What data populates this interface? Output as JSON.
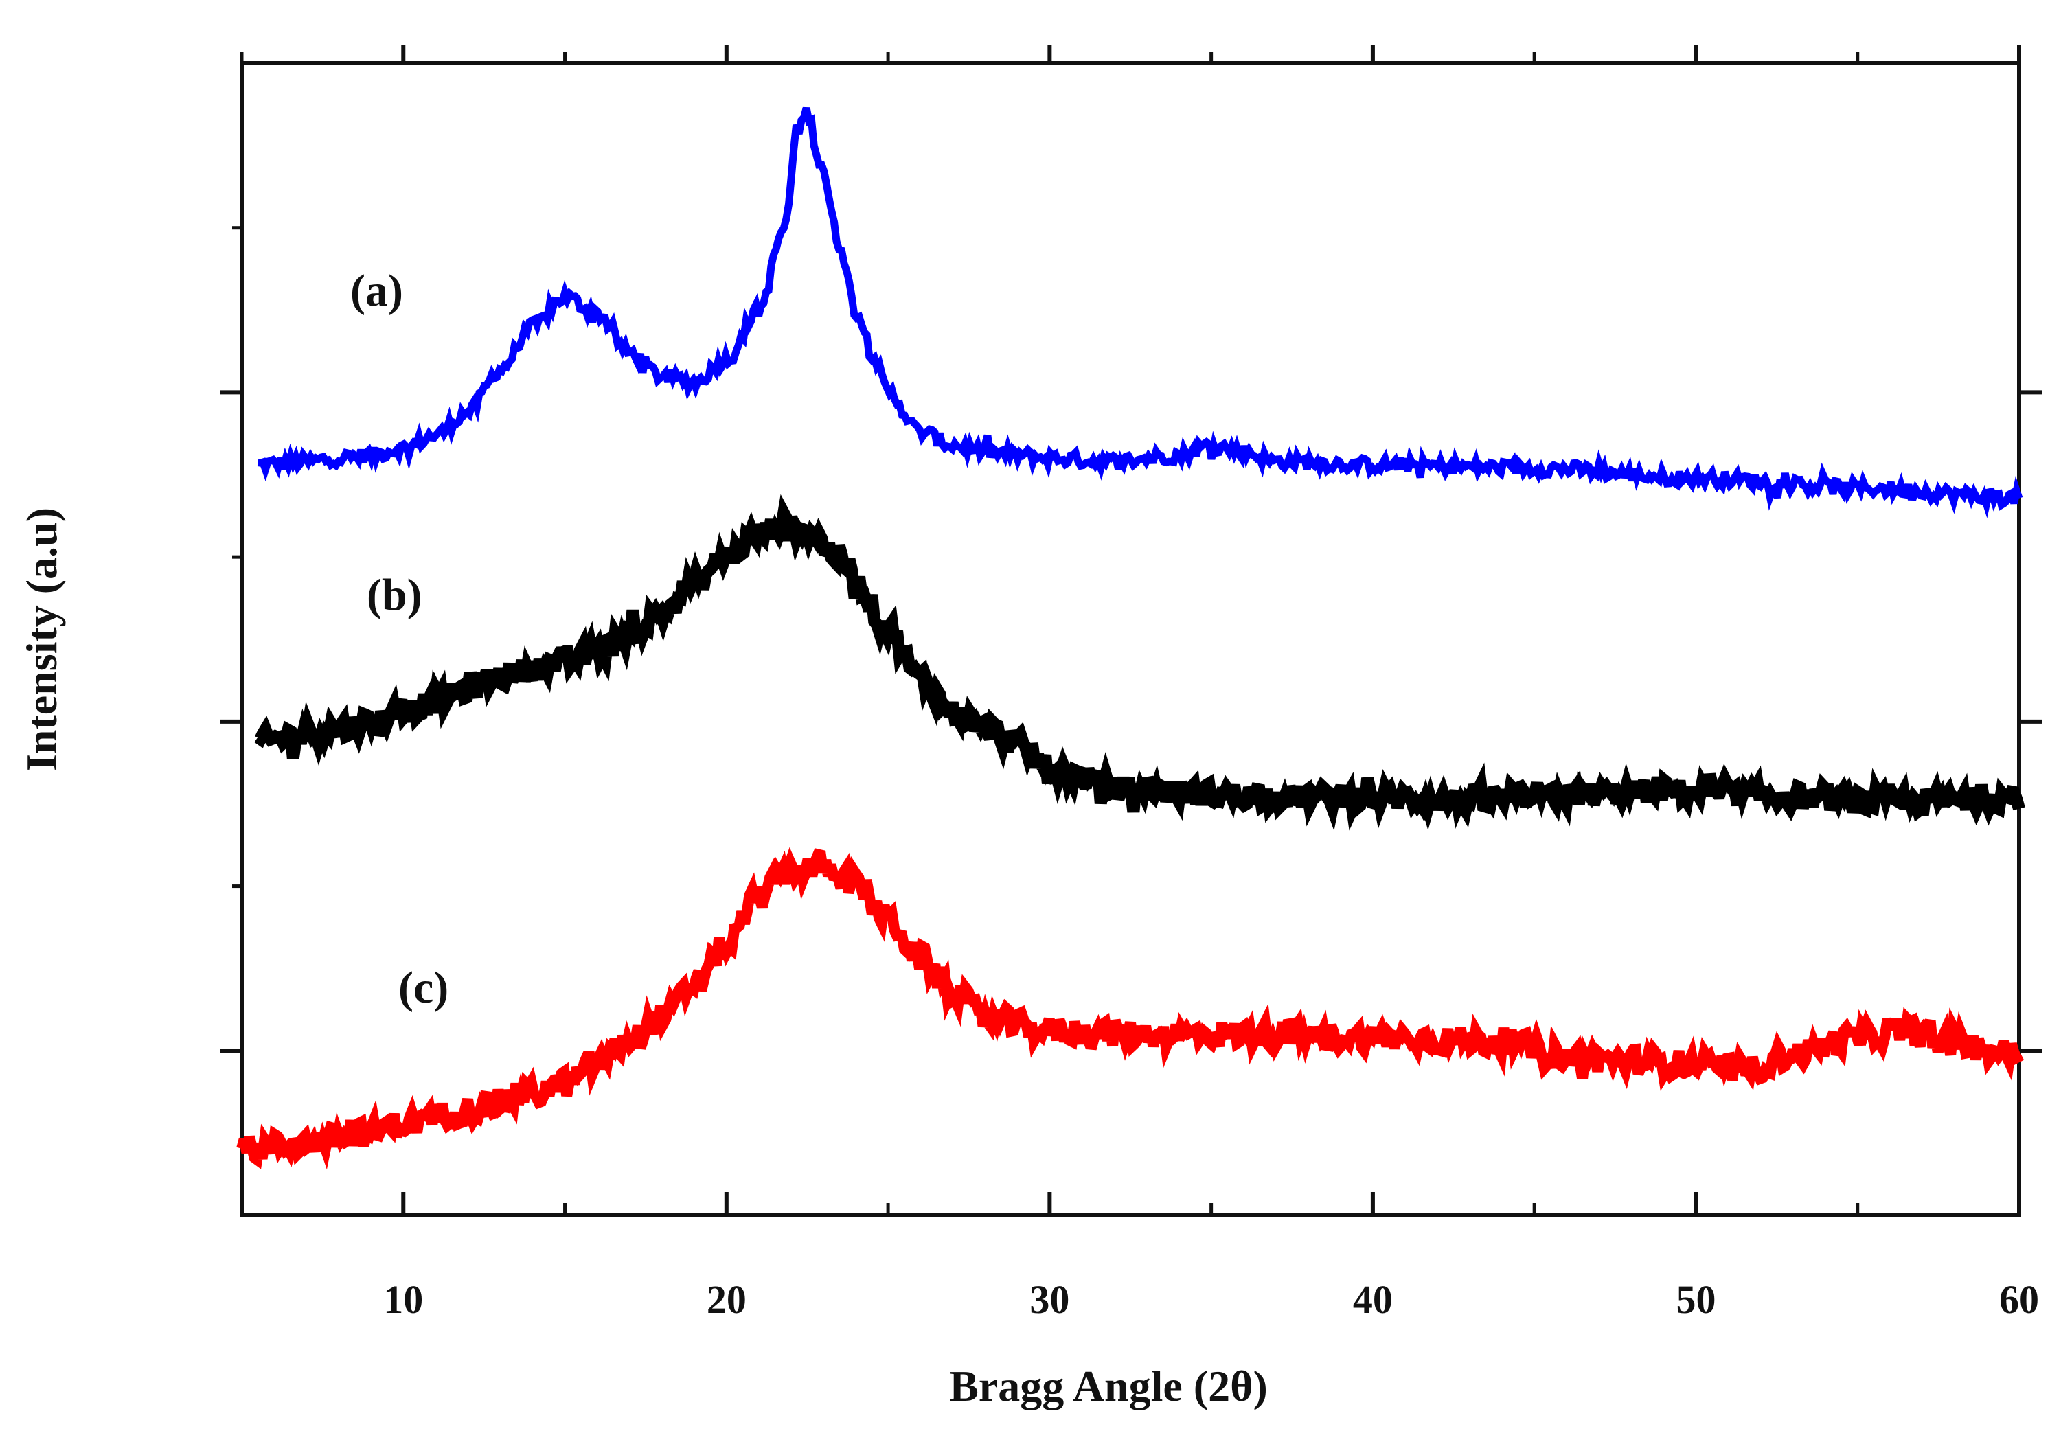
{
  "chart_data": {
    "type": "line",
    "title": "",
    "xlabel": "Bragg Angle (2θ)",
    "ylabel": "Intensity (a.u)",
    "xlim": [
      5,
      60
    ],
    "ylim": [
      0,
      3.5
    ],
    "x_ticks": [
      10,
      20,
      30,
      40,
      50,
      60
    ],
    "y_ticks_major": [
      0.5,
      1.5,
      2.5
    ],
    "y_ticks_minor": [
      1.0,
      2.0,
      3.0
    ],
    "grid": false,
    "legend": "none",
    "series": [
      {
        "name": "(a)",
        "color": "#0000ff",
        "points": [
          [
            5.5,
            2.28
          ],
          [
            7,
            2.29
          ],
          [
            8,
            2.3
          ],
          [
            9,
            2.31
          ],
          [
            10,
            2.33
          ],
          [
            11,
            2.37
          ],
          [
            12,
            2.44
          ],
          [
            13,
            2.57
          ],
          [
            14,
            2.7
          ],
          [
            15,
            2.79
          ],
          [
            16,
            2.74
          ],
          [
            17,
            2.62
          ],
          [
            18,
            2.55
          ],
          [
            19,
            2.53
          ],
          [
            20,
            2.6
          ],
          [
            21,
            2.75
          ],
          [
            21.8,
            3.0
          ],
          [
            22.2,
            3.3
          ],
          [
            22.5,
            3.35
          ],
          [
            22.9,
            3.2
          ],
          [
            23.5,
            2.95
          ],
          [
            24,
            2.75
          ],
          [
            24.5,
            2.62
          ],
          [
            25,
            2.5
          ],
          [
            26,
            2.38
          ],
          [
            27,
            2.34
          ],
          [
            28,
            2.32
          ],
          [
            29,
            2.31
          ],
          [
            30,
            2.3
          ],
          [
            32,
            2.29
          ],
          [
            34,
            2.31
          ],
          [
            35,
            2.34
          ],
          [
            36,
            2.32
          ],
          [
            37,
            2.29
          ],
          [
            40,
            2.28
          ],
          [
            45,
            2.27
          ],
          [
            50,
            2.24
          ],
          [
            55,
            2.21
          ],
          [
            60,
            2.18
          ]
        ]
      },
      {
        "name": "(b)",
        "color": "#000000",
        "points": [
          [
            5.5,
            1.44
          ],
          [
            7,
            1.46
          ],
          [
            8,
            1.48
          ],
          [
            9,
            1.5
          ],
          [
            10,
            1.53
          ],
          [
            11,
            1.56
          ],
          [
            12,
            1.6
          ],
          [
            13,
            1.64
          ],
          [
            14,
            1.66
          ],
          [
            15,
            1.68
          ],
          [
            16,
            1.71
          ],
          [
            17,
            1.76
          ],
          [
            18,
            1.83
          ],
          [
            19,
            1.92
          ],
          [
            20,
            2.0
          ],
          [
            21,
            2.07
          ],
          [
            21.8,
            2.1
          ],
          [
            22.5,
            2.08
          ],
          [
            23.5,
            2.0
          ],
          [
            24,
            1.92
          ],
          [
            25,
            1.78
          ],
          [
            26,
            1.63
          ],
          [
            27,
            1.53
          ],
          [
            28,
            1.48
          ],
          [
            29,
            1.43
          ],
          [
            30,
            1.36
          ],
          [
            31,
            1.33
          ],
          [
            32,
            1.3
          ],
          [
            33,
            1.29
          ],
          [
            35,
            1.28
          ],
          [
            38,
            1.27
          ],
          [
            40,
            1.27
          ],
          [
            43,
            1.26
          ],
          [
            45,
            1.27
          ],
          [
            47,
            1.28
          ],
          [
            49,
            1.29
          ],
          [
            51,
            1.28
          ],
          [
            53,
            1.27
          ],
          [
            55,
            1.26
          ],
          [
            57,
            1.26
          ],
          [
            60,
            1.27
          ]
        ]
      },
      {
        "name": "(c)",
        "color": "#ff0000",
        "points": [
          [
            5,
            0.2
          ],
          [
            7,
            0.22
          ],
          [
            9,
            0.25
          ],
          [
            10,
            0.28
          ],
          [
            12,
            0.32
          ],
          [
            14,
            0.37
          ],
          [
            15,
            0.4
          ],
          [
            16,
            0.46
          ],
          [
            17,
            0.53
          ],
          [
            18,
            0.6
          ],
          [
            19,
            0.7
          ],
          [
            20,
            0.82
          ],
          [
            21,
            0.97
          ],
          [
            22,
            1.05
          ],
          [
            23,
            1.06
          ],
          [
            24,
            1.01
          ],
          [
            25,
            0.9
          ],
          [
            26,
            0.78
          ],
          [
            27,
            0.68
          ],
          [
            28,
            0.6
          ],
          [
            30,
            0.56
          ],
          [
            33,
            0.55
          ],
          [
            36,
            0.55
          ],
          [
            40,
            0.54
          ],
          [
            44,
            0.53
          ],
          [
            46,
            0.48
          ],
          [
            48,
            0.47
          ],
          [
            50,
            0.46
          ],
          [
            51.5,
            0.44
          ],
          [
            53,
            0.49
          ],
          [
            55,
            0.54
          ],
          [
            56.5,
            0.56
          ],
          [
            58,
            0.52
          ],
          [
            60,
            0.49
          ]
        ]
      }
    ]
  }
}
